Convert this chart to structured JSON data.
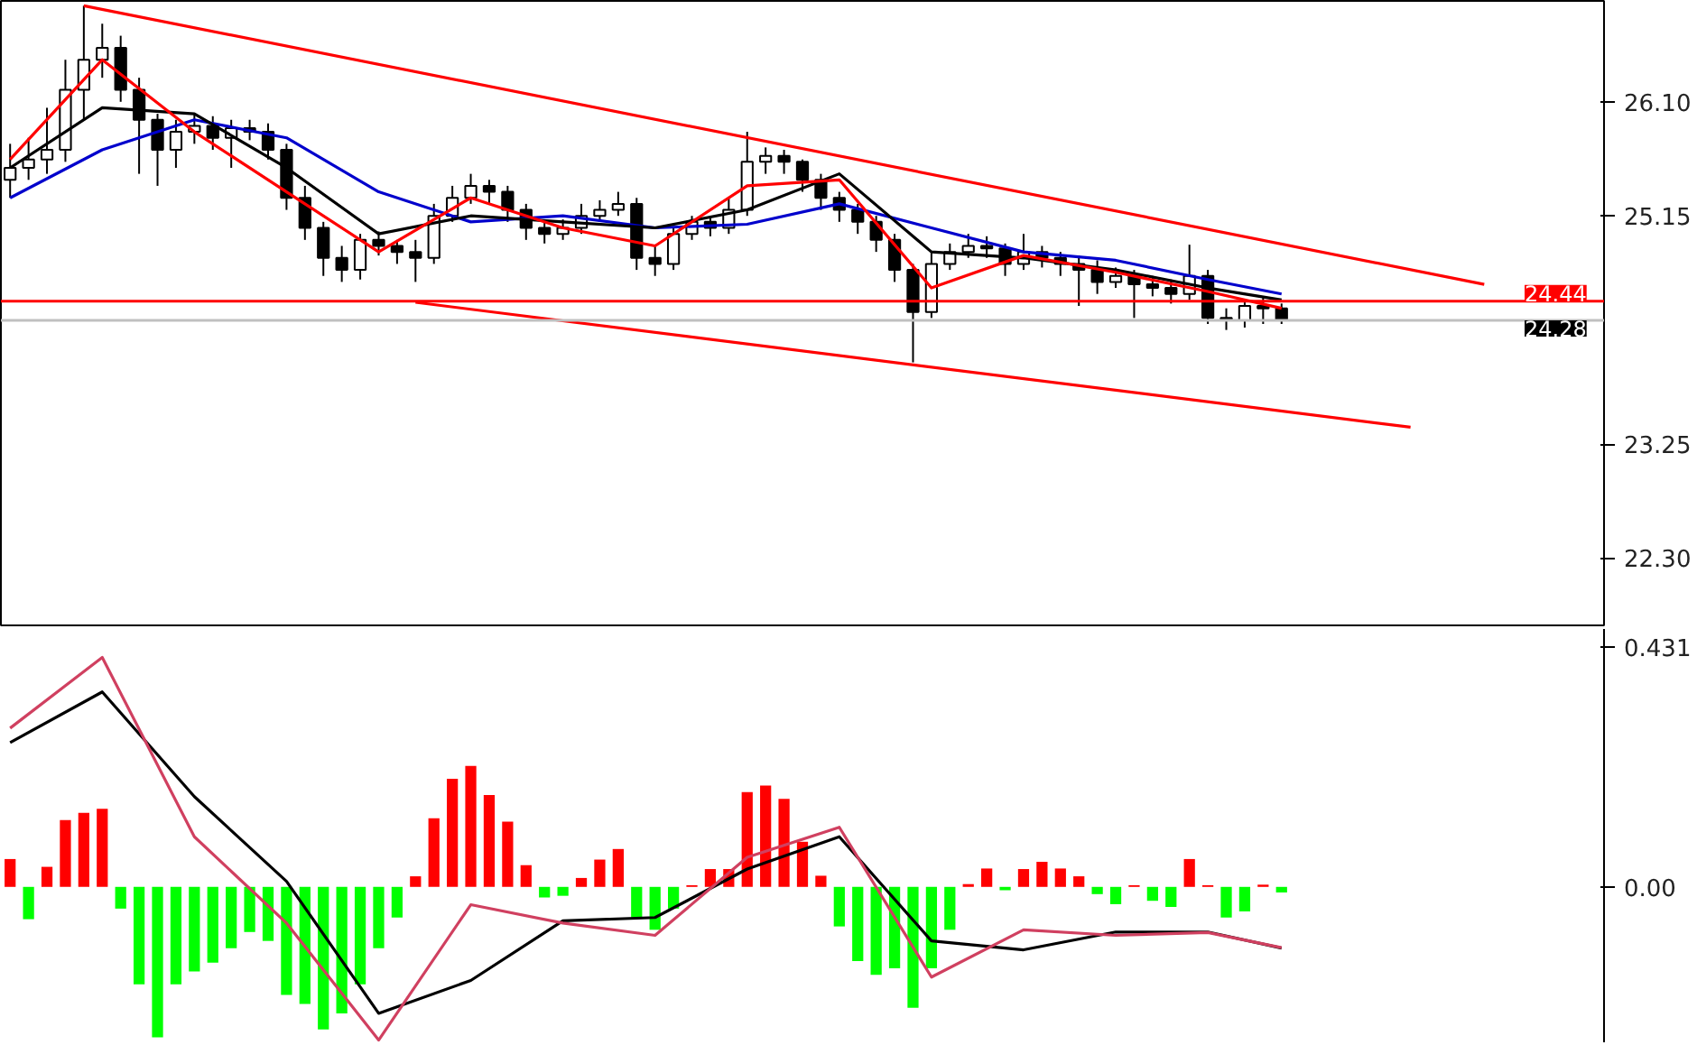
{
  "chart_data": [
    {
      "type": "candlestick",
      "tick_labels": "y",
      "grid": false,
      "categories": [
        null,
        null,
        null,
        null,
        null,
        null,
        null,
        null,
        null,
        null,
        null,
        null,
        null,
        null,
        null,
        null,
        null,
        null,
        null,
        null,
        null,
        null,
        null,
        null,
        null,
        null,
        null,
        null,
        null,
        null,
        null,
        null,
        null,
        null,
        null,
        null,
        null,
        null,
        null,
        null,
        null,
        null,
        null,
        null,
        null,
        null,
        null,
        null,
        null,
        null,
        null,
        null,
        null,
        null,
        null,
        null,
        null,
        null,
        null,
        null,
        null,
        null,
        null,
        null,
        null,
        null,
        null,
        null,
        null,
        null,
        null,
        null,
        null,
        null,
        null,
        null,
        null,
        null,
        null,
        null,
        null,
        null,
        null,
        null,
        null,
        null,
        null
      ],
      "ohlc": [
        [
          25.45,
          25.75,
          25.3,
          25.55
        ],
        [
          25.55,
          25.8,
          25.45,
          25.62
        ],
        [
          25.62,
          26.05,
          25.5,
          25.7
        ],
        [
          25.7,
          26.45,
          25.6,
          26.2
        ],
        [
          26.2,
          26.9,
          25.95,
          26.45
        ],
        [
          26.45,
          26.75,
          26.3,
          26.55
        ],
        [
          26.55,
          26.65,
          26.1,
          26.2
        ],
        [
          26.2,
          26.3,
          25.5,
          25.95
        ],
        [
          25.95,
          26.0,
          25.4,
          25.7
        ],
        [
          25.7,
          25.95,
          25.55,
          25.85
        ],
        [
          25.85,
          26.0,
          25.75,
          25.9
        ],
        [
          25.9,
          25.98,
          25.7,
          25.8
        ],
        [
          25.8,
          25.95,
          25.55,
          25.88
        ],
        [
          25.88,
          25.95,
          25.78,
          25.85
        ],
        [
          25.85,
          25.92,
          25.62,
          25.7
        ],
        [
          25.7,
          25.75,
          25.2,
          25.3
        ],
        [
          25.3,
          25.4,
          24.95,
          25.05
        ],
        [
          25.05,
          25.1,
          24.65,
          24.8
        ],
        [
          24.8,
          24.9,
          24.6,
          24.7
        ],
        [
          24.7,
          25.0,
          24.62,
          24.95
        ],
        [
          24.95,
          25.02,
          24.82,
          24.9
        ],
        [
          24.9,
          24.95,
          24.75,
          24.85
        ],
        [
          24.85,
          24.95,
          24.6,
          24.8
        ],
        [
          24.8,
          25.25,
          24.75,
          25.15
        ],
        [
          25.15,
          25.4,
          25.1,
          25.3
        ],
        [
          25.3,
          25.5,
          25.25,
          25.4
        ],
        [
          25.4,
          25.45,
          25.25,
          25.35
        ],
        [
          25.35,
          25.4,
          25.1,
          25.2
        ],
        [
          25.2,
          25.25,
          24.95,
          25.05
        ],
        [
          25.05,
          25.1,
          24.92,
          25.0
        ],
        [
          25.0,
          25.12,
          24.95,
          25.05
        ],
        [
          25.05,
          25.25,
          25.0,
          25.15
        ],
        [
          25.15,
          25.28,
          25.1,
          25.2
        ],
        [
          25.2,
          25.35,
          25.15,
          25.25
        ],
        [
          25.25,
          25.3,
          24.7,
          24.8
        ],
        [
          24.8,
          24.9,
          24.65,
          24.75
        ],
        [
          24.75,
          25.05,
          24.7,
          25.0
        ],
        [
          25.0,
          25.15,
          24.95,
          25.1
        ],
        [
          25.1,
          25.15,
          24.98,
          25.05
        ],
        [
          25.05,
          25.3,
          25.0,
          25.2
        ],
        [
          25.2,
          25.85,
          25.15,
          25.6
        ],
        [
          25.6,
          25.72,
          25.5,
          25.65
        ],
        [
          25.65,
          25.7,
          25.5,
          25.6
        ],
        [
          25.6,
          25.62,
          25.35,
          25.45
        ],
        [
          25.45,
          25.5,
          25.2,
          25.3
        ],
        [
          25.3,
          25.35,
          25.1,
          25.2
        ],
        [
          25.2,
          25.25,
          25.0,
          25.1
        ],
        [
          25.1,
          25.15,
          24.85,
          24.95
        ],
        [
          24.95,
          25.0,
          24.6,
          24.7
        ],
        [
          24.7,
          24.75,
          23.93,
          24.35
        ],
        [
          24.35,
          24.85,
          24.3,
          24.75
        ],
        [
          24.75,
          24.92,
          24.7,
          24.85
        ],
        [
          24.85,
          25.0,
          24.8,
          24.9
        ],
        [
          24.9,
          24.98,
          24.8,
          24.88
        ],
        [
          24.88,
          24.92,
          24.65,
          24.75
        ],
        [
          24.75,
          25.0,
          24.7,
          24.85
        ],
        [
          24.85,
          24.9,
          24.72,
          24.8
        ],
        [
          24.8,
          24.85,
          24.65,
          24.75
        ],
        [
          24.75,
          24.82,
          24.4,
          24.7
        ],
        [
          24.7,
          24.78,
          24.5,
          24.6
        ],
        [
          24.6,
          24.72,
          24.55,
          24.65
        ],
        [
          24.65,
          24.7,
          24.3,
          24.58
        ],
        [
          24.58,
          24.65,
          24.48,
          24.55
        ],
        [
          24.55,
          24.62,
          24.42,
          24.5
        ],
        [
          24.5,
          24.91,
          24.45,
          24.65
        ],
        [
          24.65,
          24.7,
          24.25,
          24.3
        ],
        [
          24.3,
          24.38,
          24.2,
          24.28
        ],
        [
          24.28,
          24.45,
          24.22,
          24.4
        ],
        [
          24.4,
          24.48,
          24.25,
          24.38
        ],
        [
          24.38,
          24.42,
          24.25,
          24.28
        ],
        null,
        null,
        null,
        null,
        null,
        null,
        null,
        null,
        null,
        null,
        null,
        null,
        null,
        null,
        null,
        null,
        null
      ],
      "ylim": [
        21.74,
        26.94
      ],
      "yticks": [
        {
          "value": 26.1,
          "label": "26.10"
        },
        {
          "value": 25.15,
          "label": "25.15"
        },
        {
          "value": 23.25,
          "label": "23.25"
        },
        {
          "value": 22.3,
          "label": "22.30"
        }
      ],
      "ref_lines": [
        {
          "axis": "y",
          "value": 24.28,
          "label": "24.28",
          "color": "#c0c0c0"
        },
        {
          "axis": "y",
          "value": 24.44,
          "label": "24.44",
          "color": "#ff0000"
        }
      ],
      "series": [
        {
          "type": "line",
          "color": "#0000cc",
          "values": [
            25.3,
            null,
            null,
            null,
            null,
            25.7,
            null,
            null,
            null,
            null,
            25.95,
            null,
            null,
            null,
            null,
            25.8,
            null,
            null,
            null,
            null,
            25.35,
            null,
            null,
            null,
            null,
            25.1,
            null,
            null,
            null,
            null,
            25.15,
            null,
            null,
            null,
            null,
            25.05,
            null,
            null,
            null,
            null,
            25.08,
            null,
            null,
            null,
            null,
            25.25,
            null,
            null,
            null,
            null,
            25.05,
            null,
            null,
            null,
            null,
            24.85,
            null,
            null,
            null,
            null,
            24.78,
            null,
            null,
            null,
            null,
            24.62,
            null,
            null,
            null,
            24.5,
            null,
            null,
            null,
            null,
            null,
            null,
            null,
            null,
            null,
            null,
            null,
            null,
            null,
            null,
            null,
            null,
            null
          ]
        },
        {
          "type": "line",
          "color": "#000000",
          "values": [
            25.55,
            null,
            null,
            null,
            null,
            26.05,
            null,
            null,
            null,
            null,
            26.0,
            null,
            null,
            null,
            null,
            25.55,
            null,
            null,
            null,
            null,
            25.0,
            null,
            null,
            null,
            null,
            25.15,
            null,
            null,
            null,
            null,
            25.1,
            null,
            null,
            null,
            null,
            25.05,
            null,
            null,
            null,
            null,
            25.2,
            null,
            null,
            null,
            null,
            25.5,
            null,
            null,
            null,
            null,
            24.85,
            null,
            null,
            null,
            null,
            24.8,
            null,
            null,
            null,
            null,
            24.7,
            null,
            null,
            null,
            null,
            24.55,
            null,
            null,
            null,
            24.45,
            null,
            null,
            null,
            null,
            null,
            null,
            null,
            null,
            null,
            null,
            null,
            null,
            null,
            null,
            null,
            null,
            null
          ]
        },
        {
          "type": "line",
          "color": "#ff0000",
          "values": [
            25.62,
            null,
            null,
            null,
            null,
            26.45,
            null,
            null,
            null,
            null,
            25.85,
            null,
            null,
            null,
            null,
            25.35,
            null,
            null,
            null,
            null,
            24.85,
            null,
            null,
            null,
            null,
            25.3,
            null,
            null,
            null,
            null,
            25.05,
            null,
            null,
            null,
            null,
            24.9,
            null,
            null,
            null,
            null,
            25.4,
            null,
            null,
            null,
            null,
            25.45,
            null,
            null,
            null,
            null,
            24.55,
            null,
            null,
            null,
            null,
            24.82,
            null,
            null,
            null,
            null,
            24.68,
            null,
            null,
            null,
            null,
            24.52,
            null,
            null,
            null,
            24.38,
            null,
            null,
            null,
            null,
            null,
            null,
            null,
            null,
            null,
            null,
            null,
            null,
            null,
            null,
            null,
            null,
            null
          ]
        },
        {
          "type": "line",
          "color": "#ff0000",
          "values": [
            null,
            null,
            null,
            null,
            26.9,
            null,
            null,
            null,
            null,
            null,
            null,
            null,
            null,
            null,
            null,
            null,
            null,
            null,
            null,
            null,
            null,
            null,
            null,
            null,
            null,
            null,
            null,
            null,
            null,
            null,
            null,
            null,
            null,
            null,
            null,
            null,
            null,
            null,
            null,
            null,
            null,
            null,
            null,
            null,
            null,
            null,
            null,
            null,
            null,
            null,
            null,
            null,
            null,
            null,
            null,
            null,
            null,
            null,
            null,
            null,
            null,
            null,
            null,
            null,
            null,
            null,
            null,
            null,
            null,
            null,
            null,
            null,
            null,
            null,
            null,
            null,
            null,
            null,
            null,
            null,
            24.58,
            null,
            null,
            null,
            null,
            null,
            null
          ]
        },
        {
          "type": "line",
          "color": "#ff0000",
          "values": [
            null,
            null,
            null,
            null,
            null,
            null,
            null,
            null,
            null,
            null,
            null,
            null,
            null,
            null,
            null,
            null,
            null,
            null,
            null,
            null,
            null,
            null,
            24.43,
            null,
            null,
            null,
            null,
            null,
            null,
            null,
            null,
            null,
            null,
            null,
            null,
            null,
            null,
            null,
            null,
            null,
            null,
            null,
            null,
            null,
            null,
            null,
            null,
            null,
            null,
            null,
            null,
            null,
            null,
            null,
            null,
            null,
            null,
            null,
            null,
            null,
            null,
            null,
            null,
            null,
            null,
            null,
            null,
            null,
            null,
            null,
            null,
            null,
            null,
            null,
            null,
            null,
            23.39,
            null,
            null,
            null,
            null,
            null,
            null,
            null,
            null,
            null,
            null
          ]
        }
      ]
    },
    {
      "type": "bar",
      "tick_labels": "y",
      "grid": false,
      "categories": [
        null,
        null,
        null,
        null,
        null,
        null,
        null,
        null,
        null,
        null,
        null,
        null,
        null,
        null,
        null,
        null,
        null,
        null,
        null,
        null,
        null,
        null,
        null,
        null,
        null,
        null,
        null,
        null,
        null,
        null,
        null,
        null,
        null,
        null,
        null,
        null,
        null,
        null,
        null,
        null,
        null,
        null,
        null,
        null,
        null,
        null,
        null,
        null,
        null,
        null,
        null,
        null,
        null,
        null,
        null,
        null,
        null,
        null,
        null,
        null,
        null,
        null,
        null,
        null,
        null,
        null,
        null,
        null,
        null,
        null,
        null,
        null,
        null,
        null,
        null,
        null,
        null,
        null,
        null,
        null,
        null,
        null,
        null,
        null,
        null,
        null,
        null
      ],
      "values": [
        0.05,
        -0.058,
        0.036,
        0.12,
        0.133,
        0.14,
        -0.039,
        -0.175,
        -0.27,
        -0.175,
        -0.152,
        -0.136,
        -0.11,
        -0.081,
        -0.097,
        -0.194,
        -0.21,
        -0.256,
        -0.227,
        -0.175,
        -0.11,
        -0.055,
        0.019,
        0.123,
        0.194,
        0.217,
        0.165,
        0.117,
        0.039,
        -0.019,
        -0.016,
        0.016,
        0.049,
        0.068,
        -0.055,
        -0.077,
        -0.039,
        0.003,
        0.032,
        0.032,
        0.17,
        0.182,
        0.158,
        0.081,
        0.02,
        -0.071,
        -0.133,
        -0.158,
        -0.146,
        -0.217,
        -0.146,
        -0.077,
        0.005,
        0.033,
        -0.006,
        0.032,
        0.045,
        0.033,
        0.019,
        -0.013,
        -0.031,
        0.003,
        -0.025,
        -0.036,
        0.05,
        0.003,
        -0.055,
        -0.044,
        0.004,
        -0.01,
        null,
        null,
        null,
        null,
        null,
        null,
        null,
        null,
        null,
        null,
        null,
        null,
        null,
        null,
        null,
        null,
        null
      ],
      "colors": [
        "#ff0000",
        "#00ff00",
        "#ff0000",
        "#ff0000",
        "#ff0000",
        "#ff0000",
        "#00ff00",
        "#00ff00",
        "#00ff00",
        "#00ff00",
        "#00ff00",
        "#00ff00",
        "#00ff00",
        "#00ff00",
        "#00ff00",
        "#00ff00",
        "#00ff00",
        "#00ff00",
        "#00ff00",
        "#00ff00",
        "#00ff00",
        "#00ff00",
        "#ff0000",
        "#ff0000",
        "#ff0000",
        "#ff0000",
        "#ff0000",
        "#ff0000",
        "#ff0000",
        "#00ff00",
        "#00ff00",
        "#ff0000",
        "#ff0000",
        "#ff0000",
        "#00ff00",
        "#00ff00",
        "#00ff00",
        "#ff0000",
        "#ff0000",
        "#ff0000",
        "#ff0000",
        "#ff0000",
        "#ff0000",
        "#ff0000",
        "#ff0000",
        "#00ff00",
        "#00ff00",
        "#00ff00",
        "#00ff00",
        "#00ff00",
        "#00ff00",
        "#00ff00",
        "#ff0000",
        "#ff0000",
        "#00ff00",
        "#ff0000",
        "#ff0000",
        "#ff0000",
        "#ff0000",
        "#00ff00",
        "#00ff00",
        "#ff0000",
        "#00ff00",
        "#00ff00",
        "#ff0000",
        "#ff0000",
        "#00ff00",
        "#00ff00",
        "#ff0000",
        "#00ff00",
        "#00ff00",
        "#00ff00",
        "#00ff00",
        "#00ff00",
        "#00ff00",
        "#00ff00",
        "#00ff00",
        "#00ff00",
        "#00ff00",
        "#00ff00",
        "#00ff00",
        "#00ff00",
        "#00ff00",
        "#00ff00",
        "#00ff00",
        "#00ff00",
        "#00ff00"
      ],
      "ylim": [
        -0.279,
        0.463
      ],
      "yticks": [
        {
          "value": 0.431,
          "label": "0.431"
        },
        {
          "value": 0,
          "label": "0.00"
        }
      ],
      "series": [
        {
          "type": "line",
          "color": "#000000",
          "values": [
            0.259,
            null,
            null,
            null,
            null,
            0.35,
            null,
            null,
            null,
            null,
            0.162,
            null,
            null,
            null,
            null,
            0.01,
            null,
            null,
            null,
            null,
            -0.227,
            null,
            null,
            null,
            null,
            -0.168,
            null,
            null,
            null,
            null,
            -0.061,
            null,
            null,
            null,
            null,
            -0.055,
            null,
            null,
            null,
            null,
            0.032,
            null,
            null,
            null,
            null,
            0.09,
            null,
            null,
            null,
            null,
            -0.097,
            null,
            null,
            null,
            null,
            -0.113,
            null,
            null,
            null,
            null,
            -0.081,
            null,
            null,
            null,
            null,
            -0.081,
            null,
            null,
            null,
            -0.11,
            null,
            null,
            null,
            null,
            null,
            null,
            null,
            null,
            null,
            null,
            null,
            null,
            null,
            null,
            null,
            null,
            null
          ]
        },
        {
          "type": "line",
          "color": "#d04060",
          "values": [
            0.285,
            null,
            null,
            null,
            null,
            0.412,
            null,
            null,
            null,
            null,
            0.09,
            null,
            null,
            null,
            null,
            -0.065,
            null,
            null,
            null,
            null,
            -0.275,
            null,
            null,
            null,
            null,
            -0.032,
            null,
            null,
            null,
            null,
            -0.065,
            null,
            null,
            null,
            null,
            -0.087,
            null,
            null,
            null,
            null,
            0.053,
            null,
            null,
            null,
            null,
            0.107,
            null,
            null,
            null,
            null,
            -0.162,
            null,
            null,
            null,
            null,
            -0.077,
            null,
            null,
            null,
            null,
            -0.087,
            null,
            null,
            null,
            null,
            -0.082,
            null,
            null,
            null,
            -0.109,
            null,
            null,
            null,
            null,
            null,
            null,
            null,
            null,
            null,
            null,
            null,
            null,
            null,
            null,
            null,
            null,
            null
          ]
        }
      ]
    }
  ]
}
